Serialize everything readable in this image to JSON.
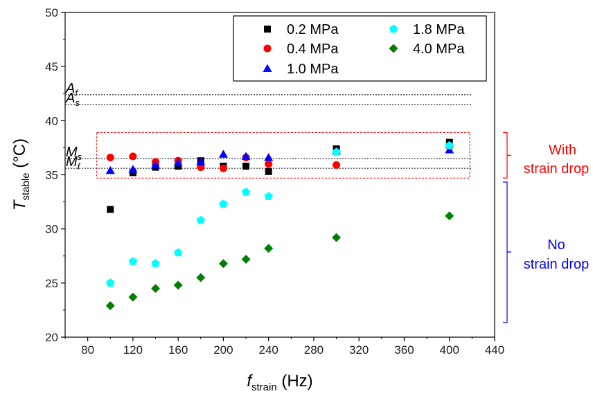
{
  "chart_data": {
    "type": "scatter",
    "xlabel": {
      "main": "f",
      "sub": "strain",
      "unit": " (Hz)"
    },
    "ylabel": {
      "main": "T",
      "sub": "stable",
      "unit": " (°C)"
    },
    "xlim": [
      60,
      440
    ],
    "ylim": [
      20,
      50
    ],
    "xticks": [
      80,
      120,
      160,
      200,
      240,
      280,
      320,
      360,
      400,
      440
    ],
    "yticks": [
      20,
      25,
      30,
      35,
      40,
      45,
      50
    ],
    "grid": false,
    "legend_position": "top-right",
    "series": [
      {
        "name": "0.2 MPa",
        "marker": "square",
        "color": "#000000",
        "x": [
          100,
          120,
          140,
          160,
          180,
          200,
          220,
          240,
          300,
          400
        ],
        "y": [
          31.8,
          35.2,
          35.7,
          35.8,
          36.3,
          35.8,
          35.8,
          35.3,
          37.4,
          38.0
        ]
      },
      {
        "name": "0.4 MPa",
        "marker": "circle",
        "color": "#ff0000",
        "x": [
          100,
          120,
          140,
          160,
          180,
          200,
          220,
          240,
          300,
          400
        ],
        "y": [
          36.6,
          36.7,
          36.2,
          36.3,
          35.7,
          35.6,
          36.6,
          36.0,
          35.9,
          37.6
        ]
      },
      {
        "name": "1.0 MPa",
        "marker": "triangle",
        "color": "#0000ff",
        "x": [
          100,
          120,
          140,
          160,
          180,
          200,
          220,
          240,
          300,
          400
        ],
        "y": [
          35.4,
          35.5,
          35.9,
          36.1,
          36.2,
          36.9,
          36.7,
          36.6,
          37.2,
          37.3
        ]
      },
      {
        "name": "1.8 MPa",
        "marker": "pentagon",
        "color": "#00ffff",
        "x": [
          100,
          120,
          140,
          160,
          180,
          200,
          220,
          240,
          300,
          400
        ],
        "y": [
          25.0,
          27.0,
          26.8,
          27.8,
          30.8,
          32.3,
          33.4,
          33.0,
          37.1,
          37.7
        ]
      },
      {
        "name": "4.0 MPa",
        "marker": "diamond",
        "color": "#008000",
        "x": [
          100,
          120,
          140,
          160,
          180,
          200,
          220,
          240,
          300,
          400
        ],
        "y": [
          22.9,
          23.7,
          24.5,
          24.8,
          25.5,
          26.8,
          27.2,
          28.2,
          29.2,
          31.2
        ]
      }
    ],
    "reference_lines": [
      {
        "main": "A",
        "sub": "f",
        "y": 42.4
      },
      {
        "main": "A",
        "sub": "s",
        "y": 41.5
      },
      {
        "main": "M",
        "sub": "s",
        "y": 36.5
      },
      {
        "main": "M",
        "sub": "f",
        "y": 35.6
      }
    ],
    "annotations": {
      "with_strain_drop": {
        "line1": "With",
        "line2": "strain drop",
        "color": "#ff0000"
      },
      "no_strain_drop": {
        "line1": "No",
        "line2": "strain drop",
        "color": "#0000ff"
      }
    }
  }
}
